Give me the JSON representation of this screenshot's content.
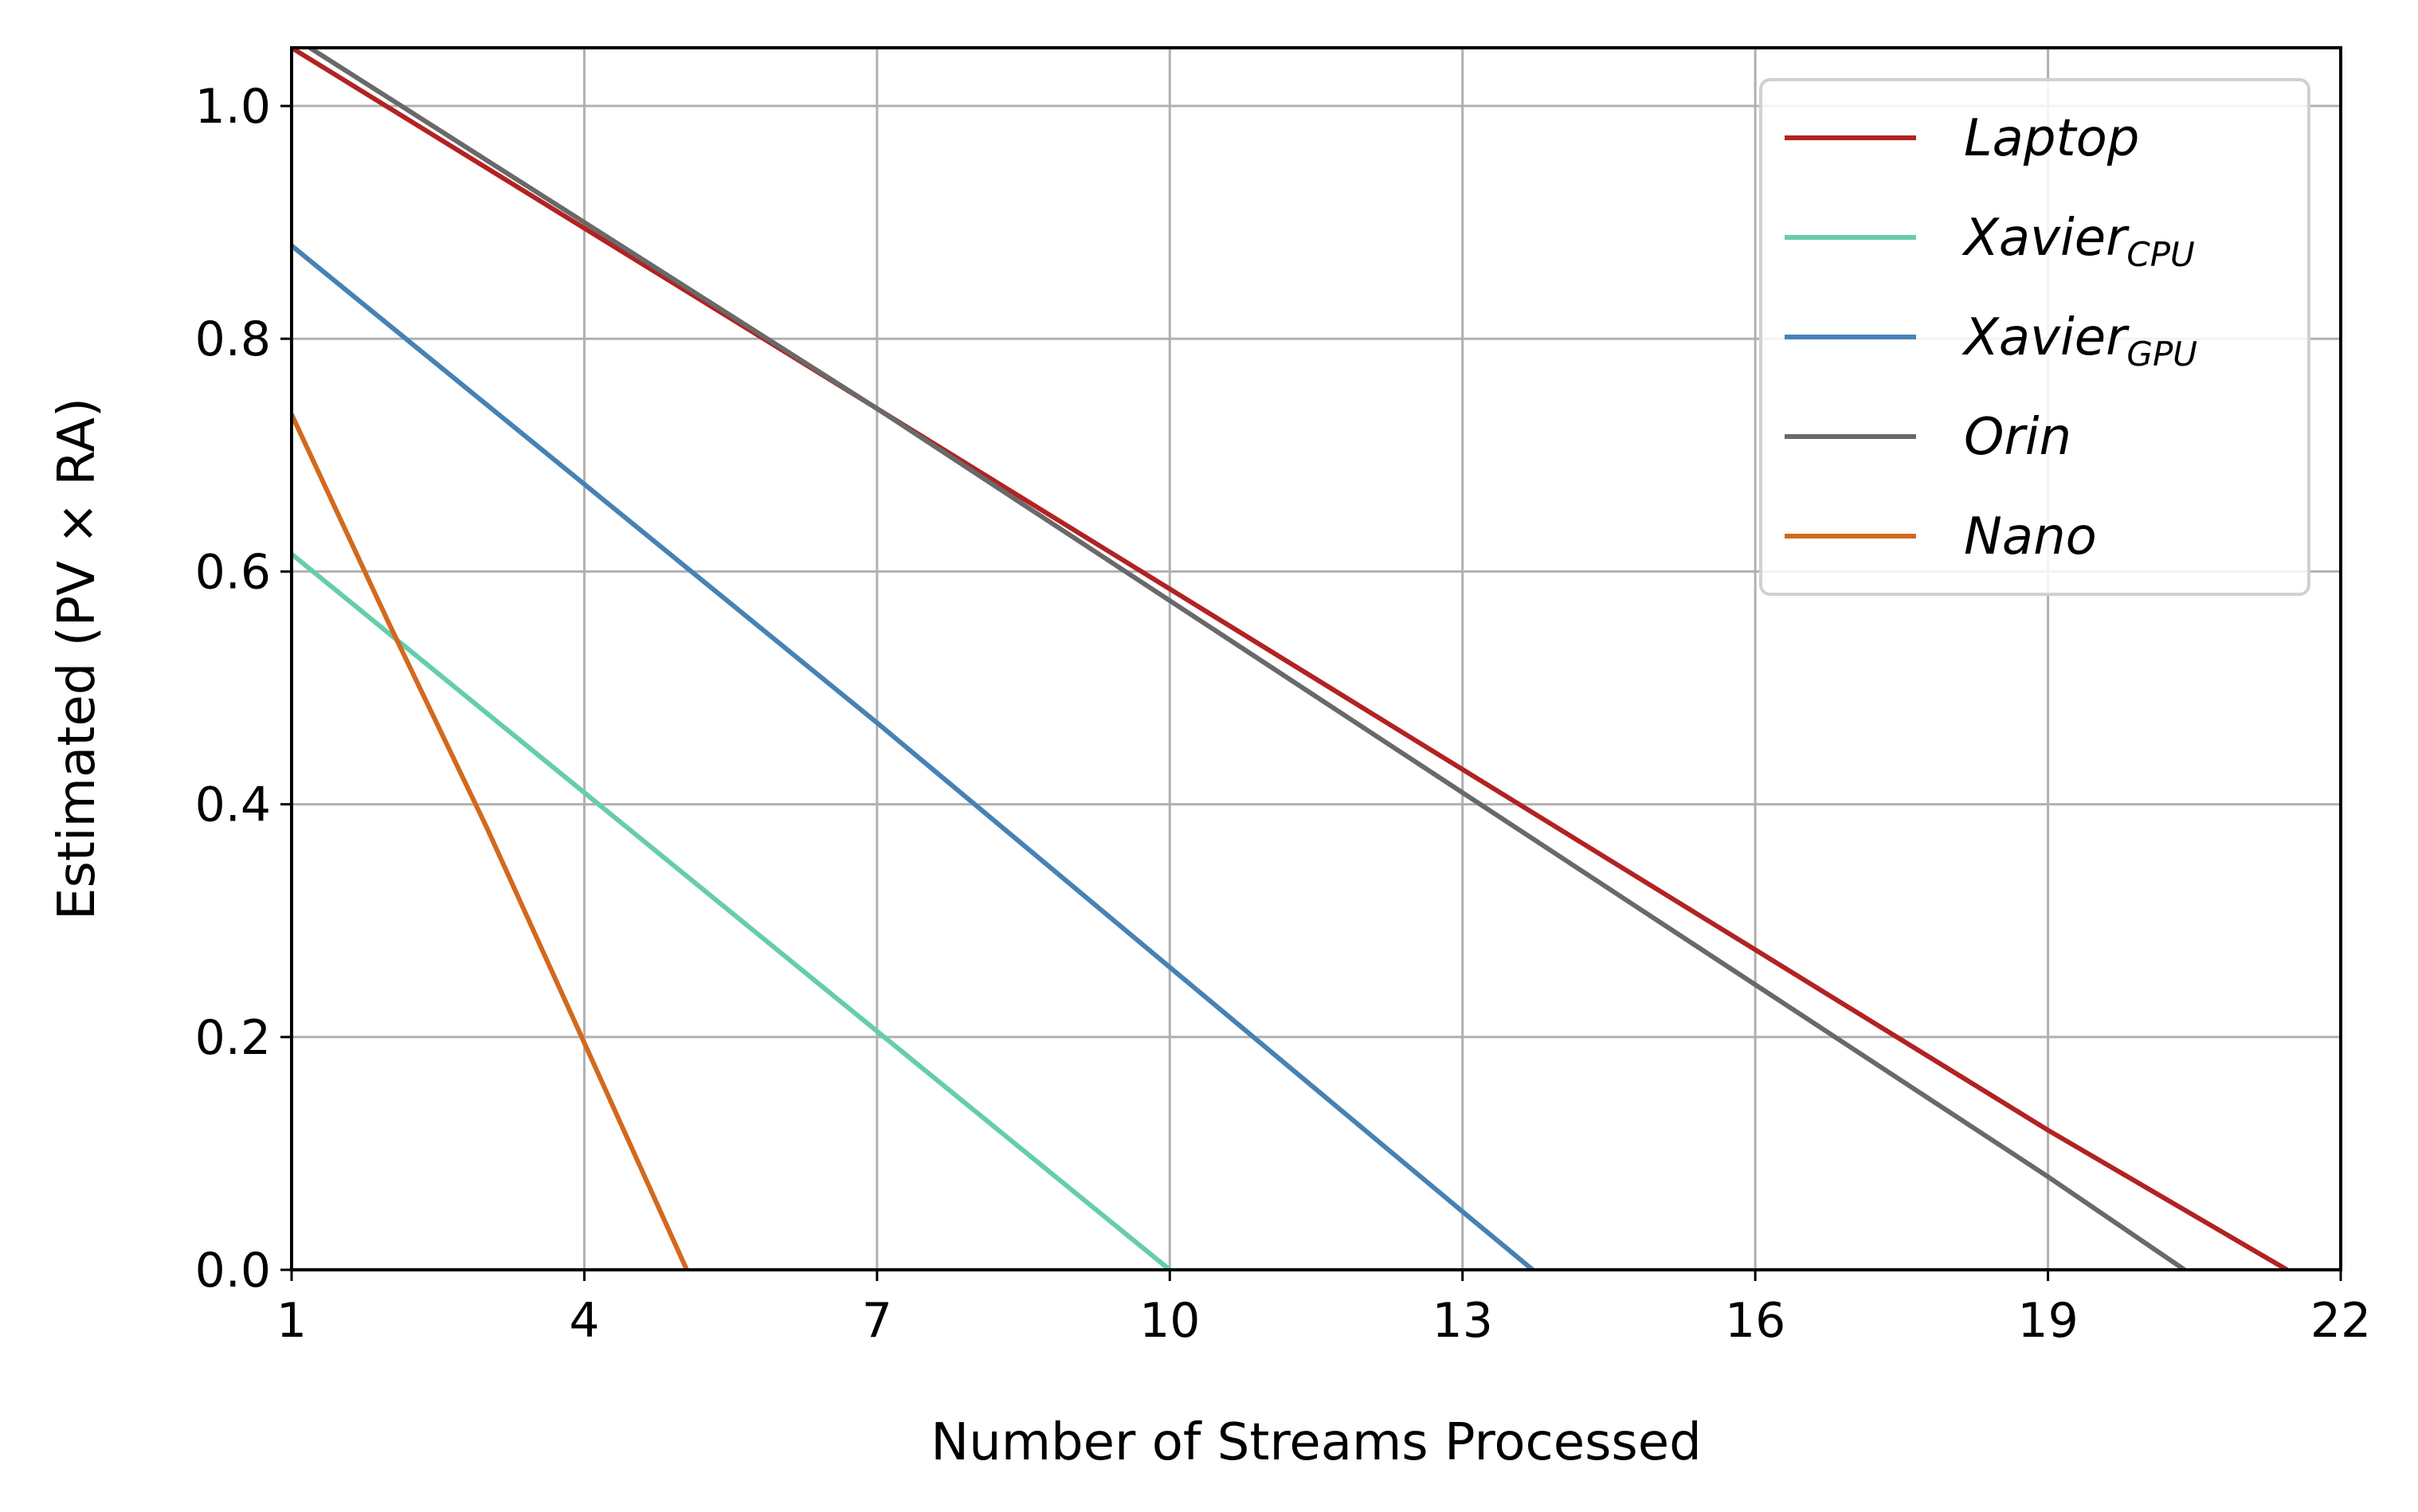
{
  "chart_data": {
    "type": "line",
    "title": "",
    "xlabel": "Number of Streams Processed",
    "ylabel": "Estimated (PV × RA)",
    "xlim": [
      1,
      22
    ],
    "ylim": [
      0,
      1.05
    ],
    "xticks": [
      1,
      4,
      7,
      10,
      13,
      16,
      19,
      22
    ],
    "xtick_labels": [
      "1",
      "4",
      "7",
      "10",
      "13",
      "16",
      "19",
      "22"
    ],
    "yticks": [
      0.0,
      0.2,
      0.4,
      0.6,
      0.8,
      1.0
    ],
    "ytick_labels": [
      "0.0",
      "0.2",
      "0.4",
      "0.6",
      "0.8",
      "1.0"
    ],
    "grid": true,
    "legend_position": "top-right",
    "series": [
      {
        "name": "Laptop",
        "name_base": "Laptop",
        "name_sub": "",
        "color": "#b22222",
        "x": [
          1,
          4,
          7,
          10,
          13,
          16,
          19,
          21.45
        ],
        "y": [
          1.05,
          0.895,
          0.74,
          0.585,
          0.43,
          0.275,
          0.12,
          0.0
        ]
      },
      {
        "name": "XavierCPU",
        "name_base": "Xavier",
        "name_sub": "CPU",
        "color": "#66cdaa",
        "x": [
          1,
          4,
          7,
          10
        ],
        "y": [
          0.615,
          0.41,
          0.205,
          0.0
        ]
      },
      {
        "name": "XavierGPU",
        "name_base": "Xavier",
        "name_sub": "GPU",
        "color": "#4682b4",
        "x": [
          1,
          4,
          7,
          10,
          13,
          13.72
        ],
        "y": [
          0.88,
          0.675,
          0.47,
          0.26,
          0.05,
          0.0
        ]
      },
      {
        "name": "Orin",
        "name_base": "Orin",
        "name_sub": "",
        "color": "#696969",
        "x": [
          1,
          4,
          7,
          10,
          13,
          16,
          19,
          20.4
        ],
        "y": [
          1.06,
          0.9,
          0.74,
          0.575,
          0.41,
          0.245,
          0.08,
          0.0
        ]
      },
      {
        "name": "Nano",
        "name_base": "Nano",
        "name_sub": "",
        "color": "#d2691e",
        "x": [
          1,
          2,
          3,
          4,
          5.05
        ],
        "y": [
          0.735,
          0.555,
          0.38,
          0.195,
          0.0
        ]
      }
    ]
  }
}
